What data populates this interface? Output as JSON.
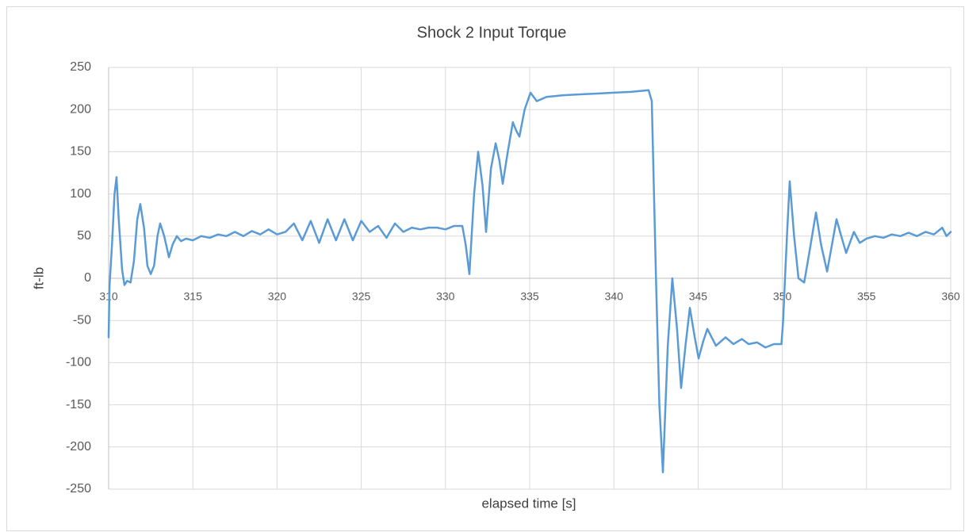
{
  "chart_data": {
    "type": "line",
    "title": "Shock 2 Input Torque",
    "x_label": "elapsed time [s]",
    "y_label": "ft-lb",
    "xlim": [
      310,
      360
    ],
    "xticks": [
      310,
      315,
      320,
      325,
      330,
      335,
      340,
      345,
      350,
      355,
      360
    ],
    "ylim": [
      -250,
      250
    ],
    "yticks": [
      -250,
      -200,
      -150,
      -100,
      -50,
      0,
      50,
      100,
      150,
      200,
      250
    ],
    "grid": true,
    "series": [
      {
        "name": "Shock 2 Input Torque",
        "color": "#5b9bd5",
        "x": [
          310,
          310.05,
          310.2,
          310.35,
          310.47,
          310.6,
          310.8,
          310.94,
          311.1,
          311.3,
          311.5,
          311.7,
          311.88,
          312.1,
          312.3,
          312.5,
          312.7,
          312.9,
          313.06,
          313.3,
          313.58,
          313.8,
          314.05,
          314.3,
          314.6,
          315,
          315.5,
          316,
          316.5,
          317,
          317.5,
          318,
          318.5,
          319,
          319.5,
          320,
          320.5,
          321,
          321.5,
          322,
          322.5,
          323,
          323.5,
          324,
          324.5,
          325,
          325.5,
          326,
          326.5,
          327,
          327.5,
          328,
          328.5,
          329,
          329.5,
          330,
          330.5,
          331,
          331.2,
          331.42,
          331.7,
          331.94,
          332.2,
          332.41,
          332.7,
          332.98,
          333.2,
          333.4,
          333.7,
          334.0,
          334.2,
          334.39,
          334.7,
          335.05,
          335.42,
          336,
          337,
          338,
          339,
          340,
          341,
          342.06,
          342.25,
          342.5,
          342.7,
          342.91,
          343.2,
          343.47,
          343.75,
          343.99,
          344.25,
          344.51,
          344.8,
          345.03,
          345.3,
          345.55,
          346.06,
          346.63,
          347.1,
          347.6,
          348,
          348.5,
          349,
          349.5,
          349.95,
          350.05,
          350.16,
          350.3,
          350.44,
          350.7,
          350.96,
          351.3,
          351.6,
          352.0,
          352.3,
          352.66,
          352.95,
          353.22,
          353.5,
          353.79,
          354.25,
          354.6,
          355,
          355.5,
          356,
          356.5,
          357,
          357.5,
          358,
          358.5,
          359,
          359.5,
          359.75,
          360
        ],
        "values": [
          -70,
          -10,
          40,
          100,
          120,
          70,
          10,
          -8,
          -3,
          -5,
          20,
          70,
          88,
          60,
          15,
          5,
          15,
          50,
          65,
          50,
          25,
          40,
          50,
          44,
          47,
          45,
          50,
          48,
          52,
          50,
          55,
          50,
          56,
          52,
          58,
          52,
          55,
          65,
          45,
          68,
          42,
          70,
          45,
          70,
          45,
          68,
          55,
          62,
          48,
          65,
          55,
          60,
          58,
          60,
          60,
          58,
          62,
          62,
          40,
          5,
          100,
          150,
          110,
          55,
          130,
          160,
          140,
          112,
          150,
          185,
          175,
          168,
          200,
          220,
          210,
          215,
          217,
          218,
          219,
          220,
          221,
          223,
          210,
          0,
          -150,
          -230,
          -80,
          0,
          -60,
          -130,
          -80,
          -35,
          -70,
          -95,
          -75,
          -60,
          -80,
          -70,
          -78,
          -72,
          -78,
          -76,
          -82,
          -78,
          -78,
          -50,
          0,
          60,
          115,
          50,
          0,
          -5,
          30,
          78,
          40,
          8,
          40,
          70,
          50,
          30,
          55,
          42,
          47,
          50,
          48,
          52,
          50,
          54,
          50,
          55,
          52,
          60,
          50,
          55
        ]
      }
    ]
  }
}
